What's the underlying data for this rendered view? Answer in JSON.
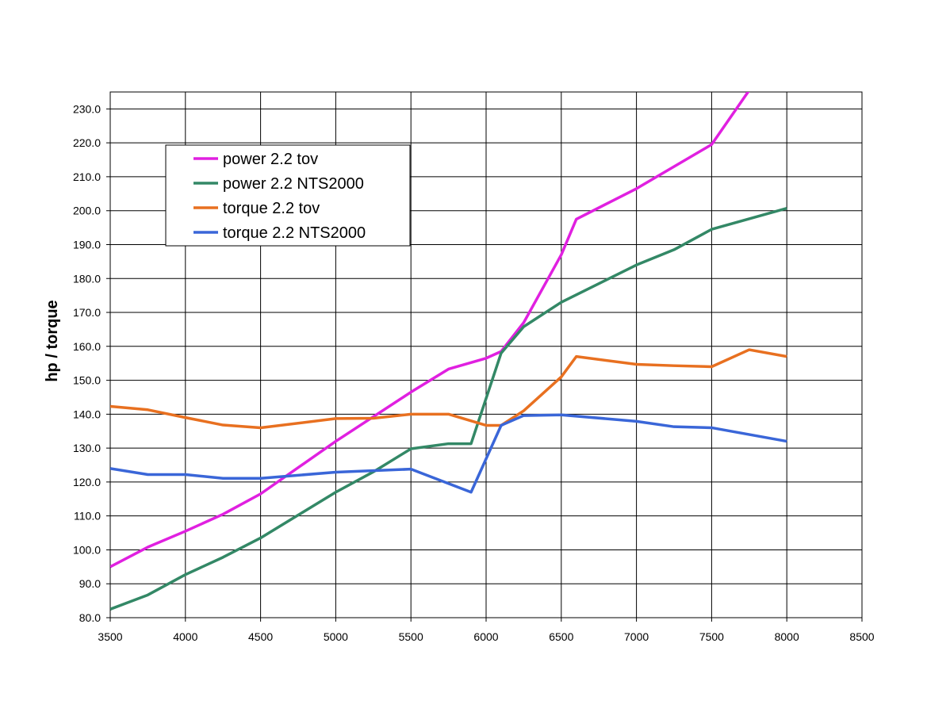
{
  "chart_data": {
    "type": "line",
    "title": "",
    "xlabel": "",
    "ylabel": "hp / torque",
    "xlim": [
      3500,
      8500
    ],
    "ylim": [
      80,
      235
    ],
    "xticks": [
      3500,
      4000,
      4500,
      5000,
      5500,
      6000,
      6500,
      7000,
      7500,
      8000,
      8500
    ],
    "yticks": [
      "80.0",
      "90.0",
      "100.0",
      "110.0",
      "120.0",
      "130.0",
      "140.0",
      "150.0",
      "160.0",
      "170.0",
      "180.0",
      "190.0",
      "200.0",
      "210.0",
      "220.0",
      "230.0"
    ],
    "grid": true,
    "legend_position": "top-left",
    "series": [
      {
        "name": "power 2.2 tov",
        "color": "#e020e0",
        "points": [
          [
            3500,
            95
          ],
          [
            3750,
            100.8
          ],
          [
            4000,
            105.5
          ],
          [
            4250,
            110.5
          ],
          [
            4500,
            116.5
          ],
          [
            5000,
            132
          ],
          [
            5500,
            146.5
          ],
          [
            5750,
            153.3
          ],
          [
            6000,
            156.5
          ],
          [
            6100,
            158.5
          ],
          [
            6250,
            167
          ],
          [
            6500,
            187
          ],
          [
            6600,
            197.5
          ],
          [
            7000,
            206.5
          ],
          [
            7500,
            219.5
          ],
          [
            7750,
            235.5
          ],
          [
            8000,
            250
          ]
        ]
      },
      {
        "name": "power 2.2 NTS2000",
        "color": "#338866",
        "points": [
          [
            3500,
            82.5
          ],
          [
            3750,
            86.7
          ],
          [
            4000,
            92.7
          ],
          [
            4250,
            97.8
          ],
          [
            4500,
            103.5
          ],
          [
            5000,
            117
          ],
          [
            5250,
            123
          ],
          [
            5500,
            129.8
          ],
          [
            5750,
            131.3
          ],
          [
            5900,
            131.3
          ],
          [
            6100,
            158
          ],
          [
            6250,
            165.8
          ],
          [
            6500,
            173
          ],
          [
            7000,
            184
          ],
          [
            7250,
            188.5
          ],
          [
            7500,
            194.5
          ],
          [
            8000,
            200.7
          ]
        ]
      },
      {
        "name": "torque 2.2 tov",
        "color": "#e87020",
        "points": [
          [
            3500,
            142.3
          ],
          [
            3750,
            141.3
          ],
          [
            4000,
            139
          ],
          [
            4250,
            136.8
          ],
          [
            4500,
            136
          ],
          [
            5000,
            138.7
          ],
          [
            5250,
            138.8
          ],
          [
            5500,
            140
          ],
          [
            5750,
            140
          ],
          [
            6000,
            136.7
          ],
          [
            6100,
            136.7
          ],
          [
            6250,
            141
          ],
          [
            6500,
            151
          ],
          [
            6600,
            157
          ],
          [
            7000,
            154.7
          ],
          [
            7250,
            154.3
          ],
          [
            7500,
            154
          ],
          [
            7750,
            159
          ],
          [
            8000,
            157
          ]
        ]
      },
      {
        "name": "torque 2.2 NTS2000",
        "color": "#3a66d8",
        "points": [
          [
            3500,
            124
          ],
          [
            3750,
            122.2
          ],
          [
            4000,
            122.2
          ],
          [
            4250,
            121.1
          ],
          [
            4500,
            121.1
          ],
          [
            5000,
            122.9
          ],
          [
            5500,
            123.8
          ],
          [
            5900,
            117
          ],
          [
            6100,
            136.7
          ],
          [
            6250,
            139.6
          ],
          [
            6500,
            139.8
          ],
          [
            7000,
            137.9
          ],
          [
            7250,
            136.3
          ],
          [
            7500,
            136
          ],
          [
            8000,
            132
          ]
        ]
      }
    ]
  }
}
